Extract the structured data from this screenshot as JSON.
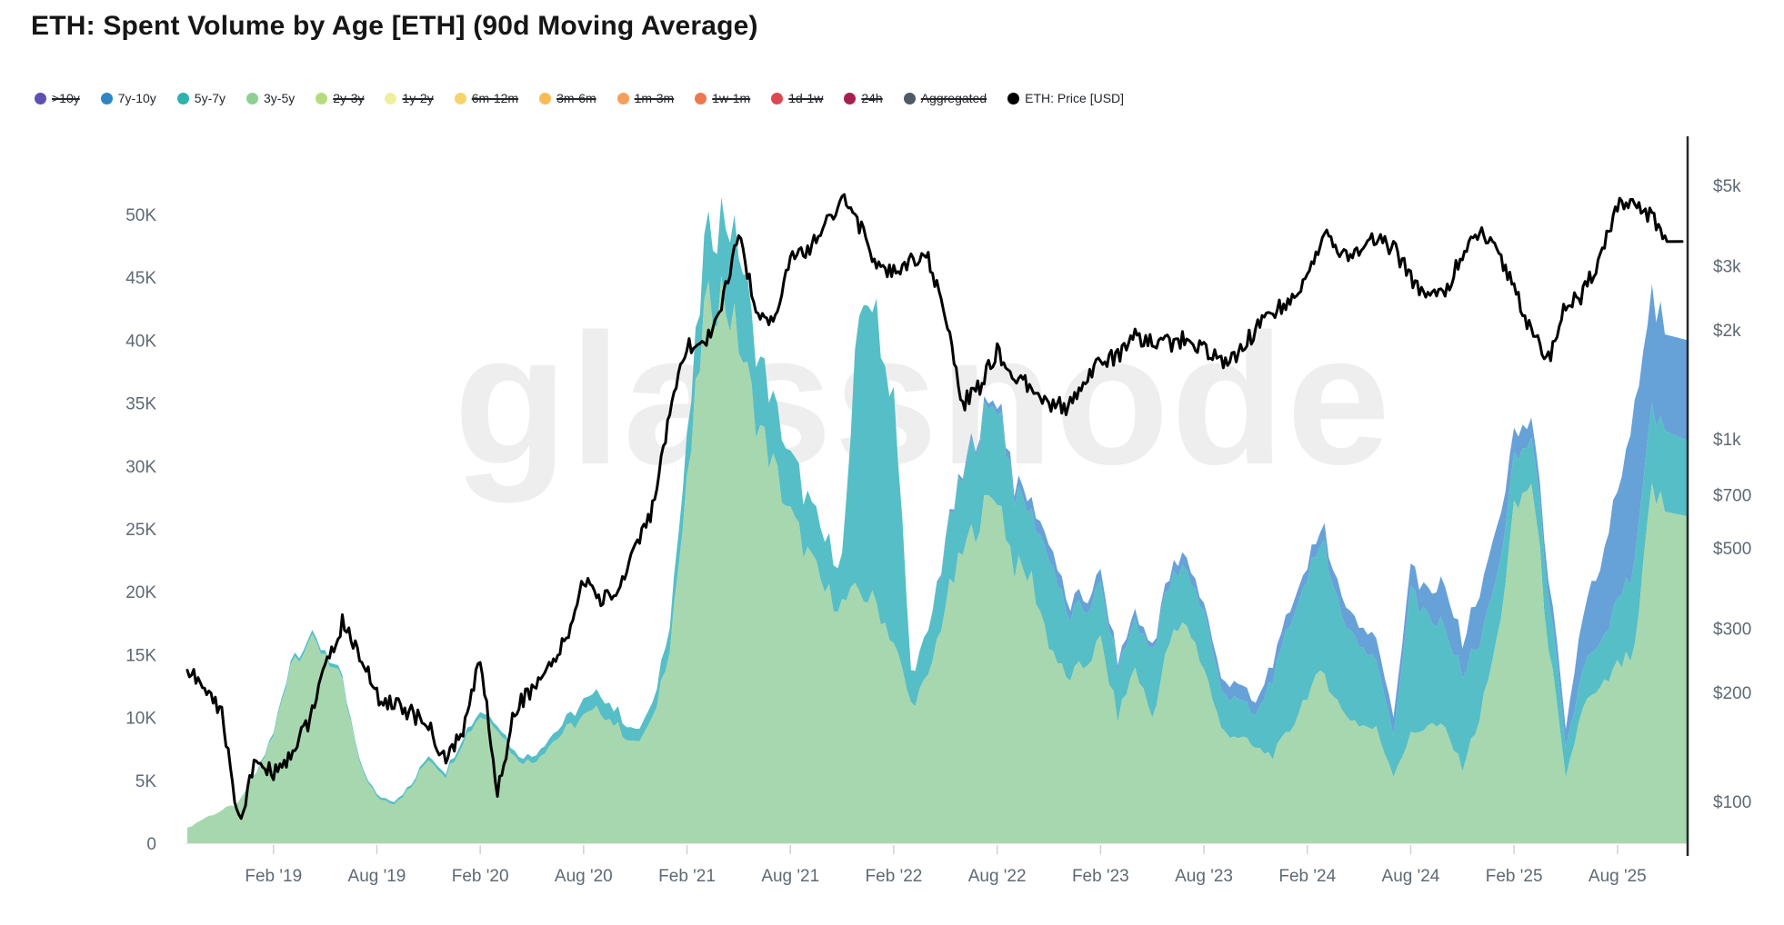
{
  "title": "ETH: Spent Volume by Age [ETH] (90d Moving Average)",
  "watermark": "glassnode",
  "legend": [
    {
      "label": ">10y",
      "color": "#5c50b4",
      "disabled": true
    },
    {
      "label": "7y-10y",
      "color": "#2e86c6",
      "disabled": false
    },
    {
      "label": "5y-7y",
      "color": "#2bb3ac",
      "disabled": false
    },
    {
      "label": "3y-5y",
      "color": "#8ed092",
      "disabled": false
    },
    {
      "label": "2y-3y",
      "color": "#b5dc7c",
      "disabled": true
    },
    {
      "label": "1y-2y",
      "color": "#eef09c",
      "disabled": true
    },
    {
      "label": "6m-12m",
      "color": "#f7d468",
      "disabled": true
    },
    {
      "label": "3m-6m",
      "color": "#f8bc55",
      "disabled": true
    },
    {
      "label": "1m-3m",
      "color": "#f89e5b",
      "disabled": true
    },
    {
      "label": "1w-1m",
      "color": "#f0764d",
      "disabled": true
    },
    {
      "label": "1d-1w",
      "color": "#dc4751",
      "disabled": true
    },
    {
      "label": "24h",
      "color": "#a61e4d",
      "disabled": true
    },
    {
      "label": "Aggregated",
      "color": "#4d5a67",
      "disabled": true
    },
    {
      "label": "ETH: Price [USD]",
      "color": "#000000",
      "disabled": false
    }
  ],
  "chart_data": {
    "type": "area",
    "stacked": true,
    "title": "ETH: Spent Volume by Age [ETH] (90d Moving Average)",
    "x": {
      "start_month": "2018-09",
      "step_months": 1,
      "count": 87
    },
    "x_tick_labels": [
      "Feb '19",
      "Aug '19",
      "Feb '20",
      "Aug '20",
      "Feb '21",
      "Aug '21",
      "Feb '22",
      "Aug '22",
      "Feb '23",
      "Aug '23",
      "Feb '24",
      "Aug '24",
      "Feb '25",
      "Aug '25"
    ],
    "left_axis": {
      "unit": "ETH",
      "range": [
        0,
        50000
      ],
      "scale": "linear",
      "tick_labels": [
        "0",
        "5K",
        "10K",
        "15K",
        "20K",
        "25K",
        "30K",
        "35K",
        "40K",
        "45K",
        "50K"
      ]
    },
    "right_axis": {
      "unit": "USD",
      "range": [
        100,
        5000
      ],
      "scale": "log",
      "tick_values": [
        100,
        200,
        300,
        500,
        700,
        1000,
        2000,
        3000,
        5000
      ],
      "tick_labels": [
        "$100",
        "$200",
        "$300",
        "$500",
        "$700",
        "$1k",
        "$2k",
        "$3k",
        "$5k"
      ]
    },
    "grid": false,
    "legend_position": "top",
    "series": [
      {
        "name": "3y-5y",
        "color": "#a7d7ae",
        "unit": "K ETH",
        "values": [
          1.2,
          2.0,
          2.6,
          3.2,
          5.5,
          8.5,
          14.5,
          16.0,
          15.2,
          12.5,
          6.2,
          3.6,
          3.2,
          4.4,
          6.8,
          5.4,
          8.2,
          10.2,
          9.4,
          6.8,
          6.4,
          7.8,
          9.0,
          10.0,
          10.6,
          9.2,
          7.8,
          9.6,
          16,
          28,
          42,
          44,
          40,
          34,
          30,
          26,
          23,
          20,
          19,
          20,
          19,
          16,
          11,
          13,
          19,
          23,
          26,
          28,
          22,
          21,
          16,
          13,
          14,
          16,
          10,
          14,
          10,
          16,
          17.5,
          14,
          9,
          8.5,
          7.5,
          7,
          9,
          12,
          13.5,
          10.5,
          9.5,
          9,
          5.5,
          8.5,
          9.5,
          9,
          6,
          10,
          16,
          26,
          29,
          16,
          5,
          11,
          12,
          14,
          15,
          28,
          26
        ]
      },
      {
        "name": "5y-7y",
        "color": "#56bec6",
        "unit": "K ETH",
        "values": [
          0,
          0,
          0,
          0,
          0.1,
          0.2,
          0.3,
          0.3,
          0.3,
          0.3,
          0.2,
          0.2,
          0.2,
          0.2,
          0.3,
          0.3,
          0.4,
          0.4,
          0.4,
          0.4,
          0.5,
          0.6,
          0.8,
          1.2,
          1.4,
          1.2,
          1.0,
          1.2,
          2,
          3.5,
          5,
          6.5,
          7.5,
          5.5,
          5,
          4.5,
          4.5,
          4,
          3.5,
          22,
          23,
          20,
          2.5,
          3.5,
          5,
          6,
          7,
          7.5,
          6,
          5,
          7,
          5,
          4.5,
          4,
          4,
          3.7,
          5.5,
          4.5,
          4.5,
          4.5,
          3,
          3,
          2.5,
          6.5,
          8,
          10,
          10,
          7.5,
          6,
          5.5,
          3.5,
          11.5,
          8.5,
          8,
          7.5,
          6,
          5,
          4,
          3.5,
          4,
          2.5,
          3,
          3.5,
          5,
          7,
          6.5,
          6
        ]
      },
      {
        "name": "7y-10y",
        "color": "#66a1d8",
        "unit": "K ETH",
        "values": [
          0,
          0,
          0,
          0,
          0,
          0,
          0,
          0,
          0,
          0,
          0,
          0,
          0,
          0,
          0,
          0,
          0,
          0,
          0,
          0,
          0,
          0,
          0,
          0,
          0,
          0,
          0,
          0,
          0,
          0,
          0,
          0,
          0,
          0,
          0,
          0,
          0,
          0,
          0,
          0,
          0,
          0,
          0,
          0,
          0.2,
          0.3,
          0.4,
          0.5,
          0.8,
          1.0,
          1.2,
          1.0,
          0.8,
          1.0,
          0.5,
          0.7,
          0.4,
          0.8,
          1.0,
          0.6,
          1.0,
          1.2,
          1.0,
          1.2,
          1.2,
          1.0,
          1.2,
          1.5,
          1.5,
          1.8,
          1.5,
          1.8,
          2.0,
          3.5,
          2.5,
          4,
          4,
          2,
          1.5,
          1.5,
          1.5,
          4.5,
          6,
          9,
          12,
          9,
          8
        ]
      }
    ],
    "price_line": {
      "name": "ETH: Price [USD]",
      "color": "#000000",
      "axis": "right-log",
      "values": [
        230,
        205,
        175,
        88,
        130,
        120,
        135,
        165,
        230,
        310,
        255,
        195,
        185,
        175,
        160,
        130,
        155,
        250,
        105,
        180,
        205,
        230,
        280,
        410,
        360,
        380,
        510,
        640,
        1150,
        1800,
        1800,
        2350,
        3600,
        2300,
        2100,
        3100,
        3300,
        3900,
        4600,
        3900,
        3000,
        2850,
        3100,
        3100,
        2200,
        1250,
        1400,
        1750,
        1450,
        1400,
        1250,
        1220,
        1450,
        1630,
        1700,
        1900,
        1840,
        1830,
        1890,
        1750,
        1640,
        1720,
        2000,
        2260,
        2350,
        2800,
        3700,
        3200,
        3300,
        3550,
        3350,
        2800,
        2450,
        2550,
        3200,
        3700,
        3250,
        2650,
        1950,
        1650,
        2350,
        2500,
        3200,
        4400,
        4350,
        4100,
        3500
      ]
    }
  }
}
